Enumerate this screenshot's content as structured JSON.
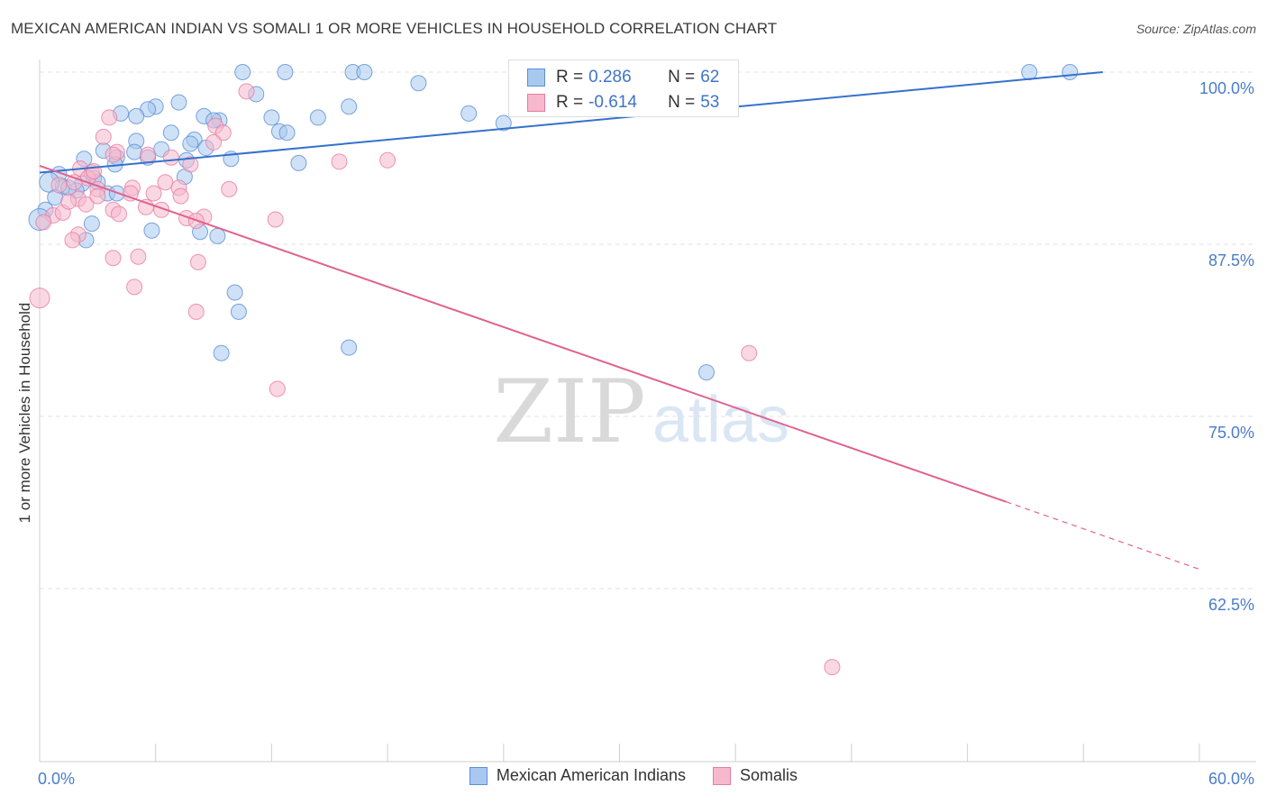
{
  "header": {
    "title": "MEXICAN AMERICAN INDIAN VS SOMALI 1 OR MORE VEHICLES IN HOUSEHOLD CORRELATION CHART",
    "source": "Source: ZipAtlas.com"
  },
  "watermark": {
    "zip": "ZIP",
    "atlas": "atlas"
  },
  "colors": {
    "blue": "#5b8fd6",
    "blue_fill": "#a8c8ef",
    "pink": "#e87ca0",
    "pink_fill": "#f5b8cc",
    "axis_text": "#4a7cc9",
    "grid": "#e3e3e3"
  },
  "stats": {
    "rows": [
      {
        "r_label": "R =",
        "r_value": "0.286",
        "n_label": "N =",
        "n_value": "62"
      },
      {
        "r_label": "R =",
        "r_value": "-0.614",
        "n_label": "N =",
        "n_value": "53"
      }
    ]
  },
  "legend": {
    "items": [
      {
        "label": "Mexican American Indians"
      },
      {
        "label": "Somalis"
      }
    ]
  },
  "chart_data": {
    "type": "scatter",
    "title": "MEXICAN AMERICAN INDIAN VS SOMALI 1 OR MORE VEHICLES IN HOUSEHOLD CORRELATION CHART",
    "xlabel": "",
    "ylabel": "1 or more Vehicles in Household",
    "xlim": [
      0,
      60
    ],
    "ylim": [
      50,
      102
    ],
    "x_tick_labels": [
      "0.0%",
      "60.0%"
    ],
    "y_ticks": [
      62.5,
      75.0,
      87.5,
      100.0
    ],
    "y_tick_labels": [
      "62.5%",
      "75.0%",
      "87.5%",
      "100.0%"
    ],
    "grid": true,
    "legend_position": "bottom",
    "series": [
      {
        "name": "Mexican American Indians",
        "r": 0.286,
        "n": 62,
        "trend": {
          "x0": 0,
          "y0": 92.7,
          "x1": 55,
          "y1": 100.0
        },
        "points": [
          [
            10.5,
            100.0
          ],
          [
            12.7,
            100.0
          ],
          [
            16.2,
            100.0
          ],
          [
            16.8,
            100.0
          ],
          [
            51.2,
            100.0
          ],
          [
            53.3,
            100.0
          ],
          [
            19.6,
            99.2
          ],
          [
            11.2,
            98.4
          ],
          [
            7.2,
            97.8
          ],
          [
            6.0,
            97.5
          ],
          [
            5.6,
            97.3
          ],
          [
            16.0,
            97.5
          ],
          [
            22.2,
            97.0
          ],
          [
            4.2,
            97.0
          ],
          [
            5.0,
            96.8
          ],
          [
            8.5,
            96.8
          ],
          [
            9.3,
            96.5
          ],
          [
            12.0,
            96.7
          ],
          [
            14.4,
            96.7
          ],
          [
            24.0,
            96.3
          ],
          [
            6.8,
            95.6
          ],
          [
            8.0,
            95.1
          ],
          [
            12.4,
            95.7
          ],
          [
            12.8,
            95.6
          ],
          [
            5.0,
            95.0
          ],
          [
            7.8,
            94.8
          ],
          [
            8.6,
            94.5
          ],
          [
            3.3,
            94.3
          ],
          [
            4.9,
            94.2
          ],
          [
            6.3,
            94.4
          ],
          [
            4.0,
            93.8
          ],
          [
            5.6,
            93.8
          ],
          [
            2.3,
            93.7
          ],
          [
            7.6,
            93.6
          ],
          [
            13.4,
            93.4
          ],
          [
            9.9,
            93.7
          ],
          [
            3.9,
            93.3
          ],
          [
            1.0,
            92.6
          ],
          [
            7.5,
            92.4
          ],
          [
            2.8,
            92.3
          ],
          [
            2.2,
            91.9
          ],
          [
            1.2,
            91.7
          ],
          [
            1.9,
            91.4
          ],
          [
            3.5,
            91.2
          ],
          [
            1.5,
            91.6
          ],
          [
            0.5,
            92.0
          ],
          [
            0.8,
            90.9
          ],
          [
            0.3,
            90.0
          ],
          [
            2.7,
            89.0
          ],
          [
            5.8,
            88.5
          ],
          [
            8.3,
            88.4
          ],
          [
            9.2,
            88.1
          ],
          [
            2.4,
            87.8
          ],
          [
            0.0,
            89.3
          ],
          [
            10.1,
            84.0
          ],
          [
            10.3,
            82.6
          ],
          [
            16.0,
            80.0
          ],
          [
            9.4,
            79.6
          ],
          [
            34.5,
            78.2
          ],
          [
            4.0,
            91.2
          ],
          [
            9.0,
            96.5
          ],
          [
            3.0,
            92.0
          ]
        ]
      },
      {
        "name": "Somalis",
        "r": -0.614,
        "n": 53,
        "trend": {
          "x0": 0,
          "y0": 93.2,
          "x1": 50,
          "y1": 68.8,
          "dash_to_x": 60,
          "dash_to_y": 63.9
        },
        "points": [
          [
            10.7,
            98.6
          ],
          [
            3.6,
            96.7
          ],
          [
            9.1,
            96.1
          ],
          [
            9.5,
            95.6
          ],
          [
            3.3,
            95.3
          ],
          [
            9.0,
            94.9
          ],
          [
            4.0,
            94.2
          ],
          [
            3.8,
            94.0
          ],
          [
            5.6,
            94.0
          ],
          [
            15.5,
            93.5
          ],
          [
            18.0,
            93.6
          ],
          [
            7.8,
            93.3
          ],
          [
            2.1,
            93.0
          ],
          [
            2.7,
            92.7
          ],
          [
            6.5,
            92.0
          ],
          [
            2.5,
            92.3
          ],
          [
            1.8,
            92.0
          ],
          [
            3.0,
            91.5
          ],
          [
            4.8,
            91.6
          ],
          [
            5.9,
            91.2
          ],
          [
            7.2,
            91.6
          ],
          [
            9.8,
            91.5
          ],
          [
            4.7,
            91.2
          ],
          [
            1.0,
            91.8
          ],
          [
            7.3,
            91.0
          ],
          [
            2.0,
            90.8
          ],
          [
            2.4,
            90.4
          ],
          [
            5.5,
            90.2
          ],
          [
            3.8,
            90.0
          ],
          [
            6.3,
            90.0
          ],
          [
            0.7,
            89.6
          ],
          [
            1.2,
            89.8
          ],
          [
            8.5,
            89.5
          ],
          [
            12.2,
            89.3
          ],
          [
            4.1,
            89.7
          ],
          [
            7.6,
            89.4
          ],
          [
            8.1,
            89.2
          ],
          [
            0.2,
            89.1
          ],
          [
            2.0,
            88.2
          ],
          [
            1.7,
            87.8
          ],
          [
            3.8,
            86.5
          ],
          [
            5.1,
            86.6
          ],
          [
            8.2,
            86.2
          ],
          [
            0.0,
            83.6
          ],
          [
            4.9,
            84.4
          ],
          [
            8.1,
            82.6
          ],
          [
            36.7,
            79.6
          ],
          [
            12.3,
            77.0
          ],
          [
            41.0,
            56.8
          ],
          [
            2.8,
            92.8
          ],
          [
            6.8,
            93.8
          ],
          [
            1.5,
            90.6
          ],
          [
            3.0,
            91.0
          ]
        ]
      }
    ]
  }
}
